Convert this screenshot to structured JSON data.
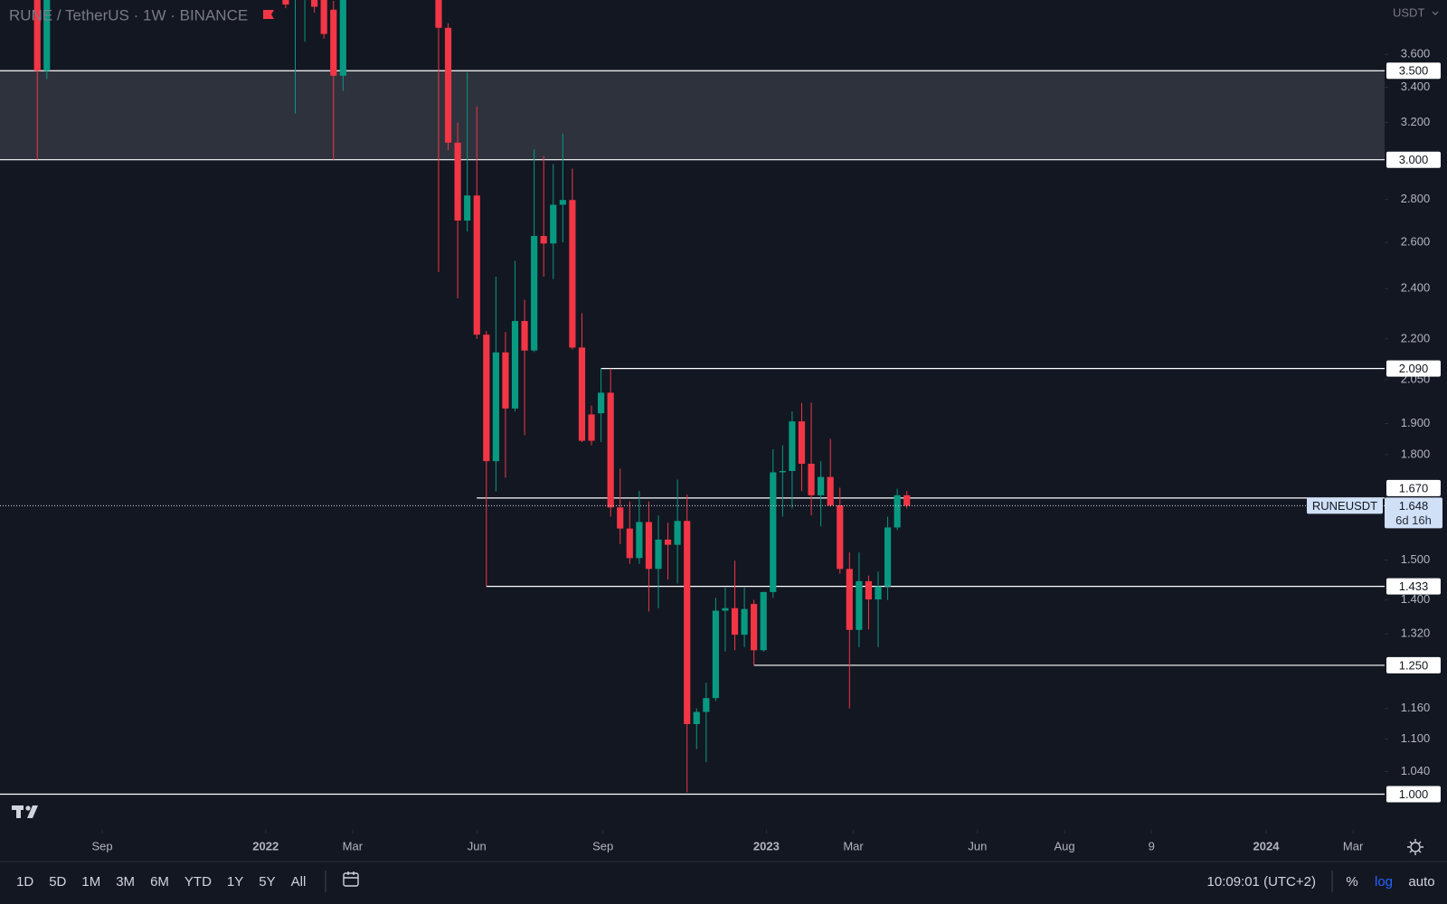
{
  "chart_data": {
    "type": "candlestick",
    "title": "RUNE / TetherUS · 1W · BINANCE",
    "currency": "USDT",
    "log": true,
    "grid": false,
    "up_color": "#089981",
    "down_color": "#f23645",
    "xlim": [
      -50.9,
      94.0
    ],
    "xticks": [
      {
        "value": -40.2,
        "label": "Sep"
      },
      {
        "value": -23.1,
        "label": "2022"
      },
      {
        "value": -14.0,
        "label": "Mar"
      },
      {
        "value": -1.0,
        "label": "Jun"
      },
      {
        "value": 12.2,
        "label": "Sep"
      },
      {
        "value": 29.3,
        "label": "2023"
      },
      {
        "value": 38.4,
        "label": "Mar"
      },
      {
        "value": 51.4,
        "label": "Jun"
      },
      {
        "value": 60.5,
        "label": "Aug"
      },
      {
        "value": 69.6,
        "label": "9"
      },
      {
        "value": 81.6,
        "label": "2024"
      },
      {
        "value": 90.7,
        "label": "Mar"
      }
    ],
    "ylim": [
      0.94,
      3.956
    ],
    "yticks": [
      {
        "value": 3.6,
        "label": "3.600"
      },
      {
        "value": 3.4,
        "label": "3.400"
      },
      {
        "value": 3.2,
        "label": "3.200"
      },
      {
        "value": 2.8,
        "label": "2.800"
      },
      {
        "value": 2.6,
        "label": "2.600"
      },
      {
        "value": 2.4,
        "label": "2.400"
      },
      {
        "value": 2.2,
        "label": "2.200"
      },
      {
        "value": 2.05,
        "label": "2.050"
      },
      {
        "value": 1.9,
        "label": "1.900"
      },
      {
        "value": 1.8,
        "label": "1.800"
      },
      {
        "value": 1.5,
        "label": "1.500"
      },
      {
        "value": 1.4,
        "label": "1.400"
      },
      {
        "value": 1.32,
        "label": "1.320"
      },
      {
        "value": 1.16,
        "label": "1.160"
      },
      {
        "value": 1.1,
        "label": "1.100"
      },
      {
        "value": 1.04,
        "label": "1.040"
      }
    ],
    "candles": {
      "x": [
        -47,
        -46,
        -21,
        -20,
        -19,
        -18,
        -17,
        -16,
        -15,
        -5,
        -4,
        -3,
        -2,
        -1,
        0,
        1,
        2,
        3,
        4,
        5,
        6,
        7,
        8,
        9,
        10,
        11,
        12,
        13,
        14,
        15,
        16,
        17,
        18,
        19,
        20,
        21,
        22,
        23,
        24,
        25,
        26,
        27,
        28,
        29,
        30,
        31,
        32,
        33,
        34,
        35,
        36,
        37,
        38,
        39,
        40,
        41,
        42,
        43,
        44
      ],
      "open": [
        4.1,
        3.5,
        4.1,
        4.0,
        3.97,
        4.05,
        4.0,
        3.89,
        3.47,
        4.1,
        3.77,
        3.09,
        2.7,
        2.82,
        2.216,
        1.78,
        2.149,
        1.95,
        2.269,
        2.156,
        2.629,
        2.595,
        2.775,
        2.798,
        2.167,
        1.93,
        1.934,
        2.004,
        1.643,
        1.584,
        1.505,
        1.602,
        1.477,
        1.554,
        1.54,
        1.605,
        1.129,
        1.153,
        1.181,
        1.374,
        1.38,
        1.318,
        1.39,
        1.283,
        1.419,
        1.746,
        1.75,
        1.907,
        1.772,
        1.678,
        1.732,
        1.649,
        1.477,
        1.329,
        1.446,
        1.401,
        1.433,
        1.587,
        1.678
      ],
      "high": [
        4.3,
        4.4,
        4.2,
        4.3,
        4.2,
        4.15,
        4.1,
        3.95,
        4.1,
        4.2,
        3.8,
        3.2,
        3.49,
        3.29,
        2.23,
        2.45,
        2.226,
        2.518,
        2.354,
        3.055,
        3.02,
        2.977,
        3.139,
        2.954,
        2.3,
        1.96,
        2.09,
        2.09,
        1.757,
        1.66,
        1.691,
        1.66,
        1.62,
        1.6,
        1.724,
        1.68,
        1.16,
        1.213,
        1.405,
        1.43,
        1.498,
        1.43,
        1.4,
        1.42,
        1.817,
        1.83,
        1.94,
        1.969,
        1.97,
        1.78,
        1.85,
        1.7,
        1.52,
        1.52,
        1.46,
        1.47,
        1.617,
        1.697,
        1.69
      ],
      "low": [
        3.0,
        3.45,
        3.9,
        3.25,
        3.68,
        3.87,
        3.7,
        3.0,
        3.38,
        2.47,
        3.05,
        2.36,
        2.65,
        2.2,
        1.433,
        1.689,
        1.73,
        1.94,
        1.862,
        2.15,
        2.45,
        2.44,
        2.6,
        2.16,
        1.84,
        1.83,
        1.84,
        1.617,
        1.542,
        1.49,
        1.49,
        1.372,
        1.38,
        1.45,
        1.44,
        1.003,
        1.081,
        1.057,
        1.175,
        1.28,
        1.283,
        1.29,
        1.25,
        1.28,
        1.405,
        1.617,
        1.64,
        1.69,
        1.62,
        1.59,
        1.645,
        1.465,
        1.16,
        1.29,
        1.33,
        1.29,
        1.4,
        1.58,
        1.64
      ],
      "close": [
        3.5,
        4.2,
        3.925,
        4.15,
        4.1,
        3.91,
        3.73,
        3.47,
        4.0,
        3.77,
        3.09,
        2.7,
        2.82,
        2.216,
        1.78,
        2.149,
        1.95,
        2.269,
        2.156,
        2.629,
        2.595,
        2.775,
        2.798,
        2.167,
        1.844,
        1.844,
        2.004,
        1.643,
        1.584,
        1.505,
        1.602,
        1.477,
        1.554,
        1.54,
        1.605,
        1.129,
        1.153,
        1.181,
        1.374,
        1.38,
        1.318,
        1.378,
        1.283,
        1.419,
        1.746,
        1.75,
        1.907,
        1.772,
        1.678,
        1.732,
        1.649,
        1.477,
        1.329,
        1.446,
        1.401,
        1.433,
        1.587,
        1.678,
        1.648
      ]
    },
    "zone": [
      3.0,
      3.5
    ],
    "levels": [
      {
        "value": 3.5,
        "label": "3.500"
      },
      {
        "value": 3.0,
        "label": "3.000"
      },
      {
        "value": 2.09,
        "label": "2.090",
        "from": 12
      },
      {
        "value": 1.67,
        "label": "1.670",
        "from": -1
      },
      {
        "value": 1.433,
        "label": "1.433",
        "from": 0
      },
      {
        "value": 1.25,
        "label": "1.250",
        "from": 28
      },
      {
        "value": 1.0,
        "label": "1.000"
      }
    ],
    "last_price": {
      "symbol": "RUNEUSDT",
      "value": 1.648,
      "countdown": "6d 16h"
    }
  },
  "toolbar": {
    "timeframes": [
      "1D",
      "5D",
      "1M",
      "3M",
      "6M",
      "YTD",
      "1Y",
      "5Y",
      "All"
    ],
    "clock": "10:09:01 (UTC+2)",
    "scale_options": [
      "%",
      "log",
      "auto"
    ]
  }
}
